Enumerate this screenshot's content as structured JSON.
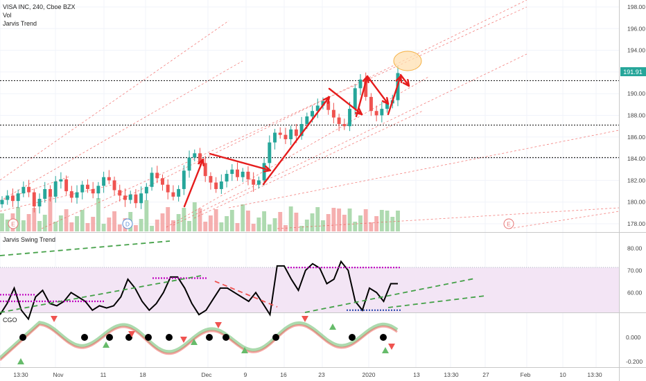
{
  "header": {
    "symbol_line": "VISA INC, 240, Cboe BZX",
    "vol_label": "Vol",
    "indicator_label": "Jarvis Trend"
  },
  "price_panel": {
    "y_ticks": [
      "198.00",
      "196.00",
      "194.00",
      "192.00",
      "190.00",
      "188.00",
      "186.00",
      "184.00",
      "182.00",
      "180.00",
      "178.00"
    ],
    "last_price": "191.91",
    "last_price_color": "#26a69a",
    "horizontal_levels": [
      191.2,
      187.1,
      184.1
    ],
    "earnings_marker": "E",
    "dividend_marker": "D"
  },
  "swing_panel": {
    "label": "Jarvis Swing Trend",
    "y_ticks": [
      "80.00",
      "70.00",
      "60.00"
    ],
    "overbought_level": 70,
    "zone_color": "#f3e5f5"
  },
  "cgo_panel": {
    "label": "CGO",
    "y_ticks": [
      "0.000",
      "-0.200"
    ],
    "bullish_color": "#4caf50",
    "bearish_color": "#ef5350"
  },
  "x_axis": {
    "labels": [
      "13:30",
      "Nov",
      "11",
      "18",
      "Dec",
      "9",
      "16",
      "23",
      "2020",
      "13",
      "13:30",
      "27",
      "Feb",
      "10",
      "13:30"
    ]
  },
  "colors": {
    "up_candle": "#26a69a",
    "down_candle": "#ef5350",
    "arrow": "#e51c1c",
    "trend_dashed": "#ef5350",
    "swing_line": "#000000",
    "swing_level": "#c000c0",
    "swing_trend": "#43a047",
    "highlight_ellipse": "#ffcc80"
  },
  "chart_data": {
    "type": "candlestick",
    "title": "VISA INC, 240, Cboe BZX",
    "ylim": [
      177.2,
      199.0
    ],
    "series": [
      {
        "name": "Price",
        "values": [
          180.2,
          180.6,
          180.1,
          180.8,
          181.4,
          180.9,
          179.6,
          180.3,
          181.2,
          180.5,
          181.9,
          182.1,
          181.0,
          180.4,
          180.9,
          181.6,
          181.2,
          180.8,
          181.5,
          182.3,
          182.0,
          181.1,
          180.6,
          180.2,
          180.7,
          179.9,
          180.8,
          181.4,
          182.7,
          182.2,
          181.6,
          180.9,
          180.5,
          181.2,
          182.9,
          184.1,
          184.5,
          183.6,
          182.4,
          181.8,
          181.2,
          181.9,
          182.6,
          183.0,
          182.3,
          182.8,
          182.1,
          181.6,
          182.0,
          183.6,
          185.5,
          186.4,
          186.2,
          185.8,
          186.7,
          186.1,
          187.2,
          187.9,
          188.4,
          188.9,
          189.3,
          188.5,
          187.8,
          187.2,
          187.0,
          188.6,
          190.5,
          191.3,
          189.7,
          188.4,
          188.0,
          188.6,
          189.1,
          189.4,
          191.9
        ]
      }
    ],
    "swing_values": [
      50,
      55,
      62,
      52,
      48,
      58,
      61,
      55,
      54,
      56,
      60,
      58,
      56,
      52,
      54,
      53,
      54,
      58,
      66,
      62,
      56,
      52,
      55,
      60,
      67,
      67,
      62,
      55,
      50,
      52,
      57,
      62,
      62,
      60,
      58,
      56,
      60,
      55,
      50,
      72,
      72,
      66,
      61,
      70,
      73,
      71,
      64,
      66,
      74,
      70,
      56,
      52,
      62,
      60,
      56,
      64,
      64
    ]
  }
}
